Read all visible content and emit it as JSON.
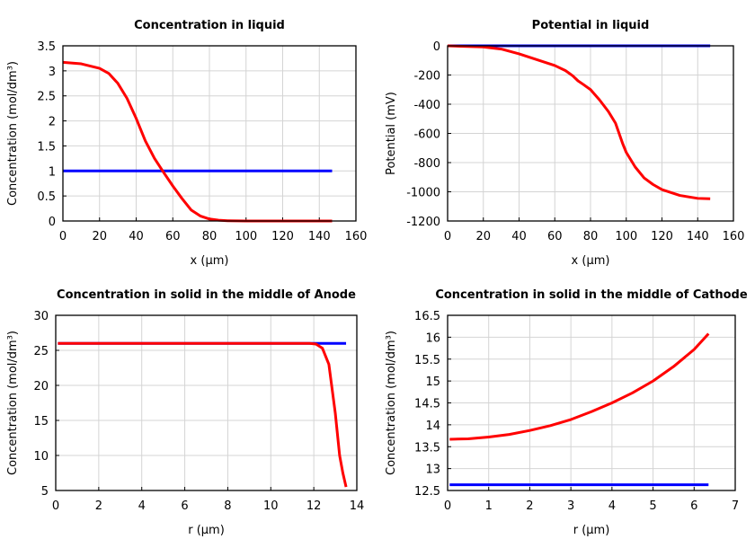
{
  "chart_data": [
    {
      "type": "line",
      "title": "Concentration in liquid",
      "xlabel": "x (µm)",
      "ylabel": "Concentration (mol/dm³)",
      "xlim": [
        0,
        160
      ],
      "ylim": [
        0,
        3.5
      ],
      "xticks": [
        0,
        20,
        40,
        60,
        80,
        100,
        120,
        140,
        160
      ],
      "yticks": [
        0,
        0.5,
        1,
        1.5,
        2,
        2.5,
        3,
        3.5
      ],
      "grid": true,
      "series": [
        {
          "color": "#0000ff",
          "x": [
            0,
            147
          ],
          "y": [
            1,
            1
          ]
        },
        {
          "color": "#ff0000",
          "x": [
            0,
            10,
            20,
            25,
            30,
            35,
            40,
            45,
            50,
            55,
            60,
            65,
            70,
            75,
            80,
            85,
            90,
            100,
            147
          ],
          "y": [
            3.17,
            3.14,
            3.05,
            2.95,
            2.75,
            2.45,
            2.05,
            1.6,
            1.25,
            0.97,
            0.7,
            0.45,
            0.22,
            0.1,
            0.04,
            0.015,
            0.005,
            0,
            0
          ]
        }
      ]
    },
    {
      "type": "line",
      "title": "Potential in liquid",
      "xlabel": "x (µm)",
      "ylabel": "Potential (mV)",
      "xlim": [
        0,
        160
      ],
      "ylim": [
        -1200,
        0
      ],
      "xticks": [
        0,
        20,
        40,
        60,
        80,
        100,
        120,
        140,
        160
      ],
      "yticks": [
        0,
        -200,
        -400,
        -600,
        -800,
        -1000,
        -1200
      ],
      "grid": true,
      "series": [
        {
          "color": "#0000ff",
          "x": [
            0,
            147
          ],
          "y": [
            0,
            0
          ]
        },
        {
          "color": "#ff0000",
          "x": [
            0,
            20,
            30,
            40,
            50,
            60,
            66,
            70,
            73,
            76,
            80,
            85,
            90,
            94,
            96,
            98,
            100,
            105,
            110,
            115,
            120,
            130,
            140,
            147
          ],
          "y": [
            0,
            -8,
            -22,
            -55,
            -95,
            -135,
            -170,
            -205,
            -240,
            -265,
            -300,
            -370,
            -450,
            -530,
            -600,
            -670,
            -730,
            -830,
            -905,
            -950,
            -985,
            -1025,
            -1045,
            -1048
          ]
        }
      ]
    },
    {
      "type": "line",
      "title": "Concentration in solid in the middle of Anode",
      "xlabel": "r (µm)",
      "ylabel": "Concentration (mol/dm³)",
      "xlim": [
        0,
        14
      ],
      "ylim": [
        5,
        30
      ],
      "xticks": [
        0,
        2,
        4,
        6,
        8,
        10,
        12,
        14
      ],
      "yticks": [
        5,
        10,
        15,
        20,
        25,
        30
      ],
      "grid": true,
      "series": [
        {
          "color": "#0000ff",
          "x": [
            0.1,
            13.5
          ],
          "y": [
            26,
            26
          ]
        },
        {
          "color": "#ff0000",
          "x": [
            0.1,
            11.8,
            12.1,
            12.4,
            12.7,
            13.0,
            13.2,
            13.35,
            13.5
          ],
          "y": [
            26,
            26,
            25.9,
            25.3,
            23,
            16,
            10,
            7.5,
            5.5
          ]
        }
      ]
    },
    {
      "type": "line",
      "title": "Concentration in solid in the middle of Cathode",
      "xlabel": "r (µm)",
      "ylabel": "Concentration (mol/dm³)",
      "xlim": [
        0,
        7
      ],
      "ylim": [
        12.5,
        16.5
      ],
      "xticks": [
        0,
        1,
        2,
        3,
        4,
        5,
        6,
        7
      ],
      "yticks": [
        12.5,
        13,
        13.5,
        14,
        14.5,
        15,
        15.5,
        16,
        16.5
      ],
      "grid": true,
      "series": [
        {
          "color": "#0000ff",
          "x": [
            0.05,
            6.35
          ],
          "y": [
            12.63,
            12.63
          ]
        },
        {
          "color": "#ff0000",
          "x": [
            0.05,
            0.5,
            1,
            1.5,
            2,
            2.5,
            3,
            3.5,
            4,
            4.5,
            5,
            5.5,
            6,
            6.35
          ],
          "y": [
            13.67,
            13.68,
            13.72,
            13.78,
            13.87,
            13.98,
            14.12,
            14.3,
            14.5,
            14.73,
            15.0,
            15.33,
            15.72,
            16.08
          ]
        }
      ]
    }
  ]
}
